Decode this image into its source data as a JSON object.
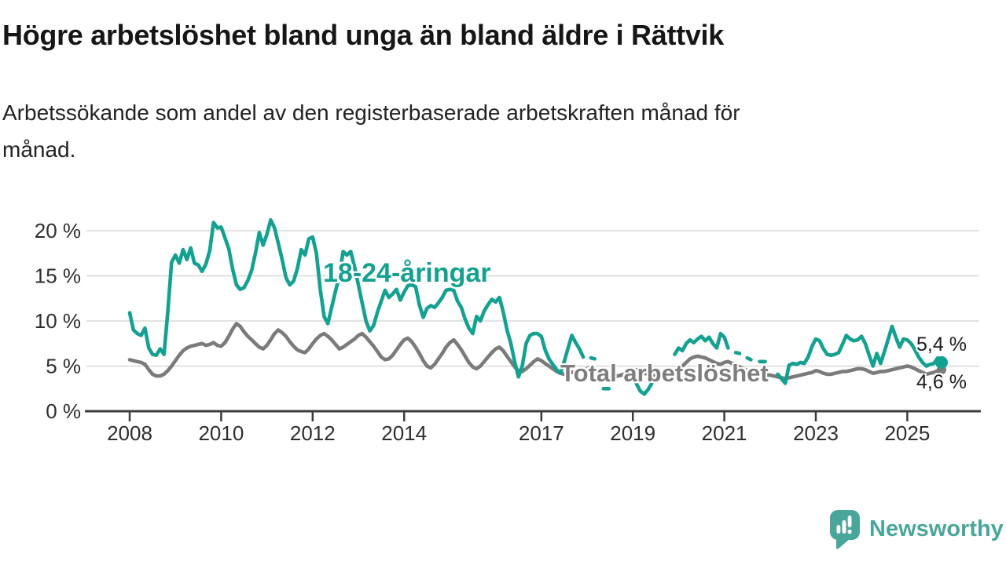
{
  "header": {
    "title": "Högre arbetslöshet bland unga än bland äldre i Rättvik",
    "subtitle_lines": {
      "line1": "Arbetssökande som andel av den registerbaserade arbetskraften månad för",
      "line2": "månad."
    }
  },
  "chart_data": {
    "type": "line",
    "title": "Högre arbetslöshet bland unga än bland äldre i Rättvik",
    "xlabel": "",
    "ylabel": "Arbetssökande som andel av den registerbaserade arbetskraften (%)",
    "unit": "%",
    "grid": "horizontal",
    "ylim": [
      0,
      21.5
    ],
    "x_domain_years": [
      2008,
      2026
    ],
    "start_month": "2008-01",
    "frequency": "monthly",
    "x_ticks": [
      {
        "year": 2008,
        "label": "2008"
      },
      {
        "year": 2010,
        "label": "2010"
      },
      {
        "year": 2012,
        "label": "2012"
      },
      {
        "year": 2014,
        "label": "2014"
      },
      {
        "year": 2017,
        "label": "2017"
      },
      {
        "year": 2019,
        "label": "2019"
      },
      {
        "year": 2021,
        "label": "2021"
      },
      {
        "year": 2023,
        "label": "2023"
      },
      {
        "year": 2025,
        "label": "2025"
      }
    ],
    "y_ticks": [
      {
        "value": 0,
        "label": "0 %"
      },
      {
        "value": 5,
        "label": "5 %"
      },
      {
        "value": 10,
        "label": "10 %"
      },
      {
        "value": 15,
        "label": "15 %"
      },
      {
        "value": 20,
        "label": "20 %"
      }
    ],
    "series": [
      {
        "id": "young",
        "name": "18-24-åringar",
        "color": "#14a191",
        "end_label": "5,4 %",
        "end_value": 5.4,
        "values": [
          10.9,
          9.0,
          8.6,
          8.4,
          9.2,
          7.0,
          6.3,
          6.2,
          6.9,
          6.3,
          11.0,
          16.5,
          17.3,
          16.4,
          17.9,
          16.8,
          18.1,
          16.4,
          16.2,
          15.5,
          16.3,
          17.8,
          20.9,
          20.3,
          20.4,
          19.2,
          18.0,
          15.8,
          14.0,
          13.5,
          13.7,
          14.5,
          15.6,
          17.5,
          19.8,
          18.4,
          19.6,
          21.2,
          20.3,
          18.6,
          16.8,
          14.8,
          14.0,
          14.4,
          15.8,
          17.9,
          17.3,
          19.1,
          19.3,
          17.5,
          13.5,
          10.5,
          9.7,
          11.5,
          13.3,
          15.0,
          17.7,
          17.3,
          17.7,
          16.0,
          14.0,
          12.0,
          10.0,
          8.9,
          9.5,
          11.0,
          12.2,
          13.4,
          12.6,
          13.0,
          13.5,
          12.3,
          13.2,
          13.9,
          14.0,
          13.8,
          11.8,
          10.4,
          11.4,
          11.7,
          11.5,
          12.0,
          12.6,
          13.4,
          13.5,
          13.4,
          12.2,
          11.5,
          10.2,
          9.2,
          8.6,
          10.5,
          10.0,
          11.1,
          11.8,
          12.4,
          12.1,
          12.6,
          11.0,
          9.0,
          7.5,
          5.5,
          3.8,
          5.0,
          7.5,
          8.4,
          8.6,
          8.6,
          8.3,
          6.8,
          5.8,
          5.2,
          4.6,
          4.2,
          5.5,
          7.0,
          8.4,
          7.6,
          6.9,
          6.0,
          null,
          5.9,
          5.8,
          null,
          null,
          2.5,
          null,
          null,
          null,
          null,
          null,
          null,
          4.0,
          3.0,
          2.2,
          1.9,
          2.4,
          3.1,
          null,
          null,
          null,
          null,
          null,
          6.3,
          7.0,
          6.7,
          7.5,
          7.9,
          7.6,
          8.0,
          8.3,
          7.8,
          8.2,
          7.5,
          7.0,
          8.6,
          8.2,
          7.0,
          null,
          6.5,
          6.4,
          null,
          5.9,
          5.7,
          null,
          null,
          5.5,
          null,
          null,
          null,
          4.1,
          3.6,
          3.1,
          5.1,
          5.3,
          5.2,
          5.4,
          5.3,
          6.0,
          7.2,
          8.0,
          7.8,
          6.9,
          6.3,
          6.2,
          6.3,
          6.5,
          7.4,
          8.4,
          8.0,
          7.8,
          7.9,
          8.3,
          7.5,
          6.2,
          5.0,
          6.4,
          5.3,
          6.6,
          8.0,
          9.4,
          8.2,
          7.1,
          8.0,
          7.9,
          7.5,
          6.8,
          6.0,
          5.4,
          5.0,
          5.2,
          5.3,
          5.9,
          5.4
        ]
      },
      {
        "id": "total",
        "name": "Total arbetslöshet",
        "color": "#7b7b7b",
        "end_label": "4,6 %",
        "end_value": 4.6,
        "values": [
          5.7,
          5.6,
          5.5,
          5.4,
          5.2,
          4.6,
          4.1,
          3.9,
          3.9,
          4.1,
          4.5,
          5.0,
          5.6,
          6.2,
          6.7,
          7.0,
          7.2,
          7.3,
          7.4,
          7.5,
          7.3,
          7.4,
          7.6,
          7.3,
          7.2,
          7.6,
          8.3,
          9.1,
          9.7,
          9.4,
          8.8,
          8.3,
          7.9,
          7.5,
          7.1,
          6.9,
          7.3,
          7.9,
          8.6,
          9.0,
          8.7,
          8.3,
          7.7,
          7.2,
          6.8,
          6.6,
          6.5,
          6.9,
          7.5,
          8.0,
          8.4,
          8.6,
          8.3,
          7.9,
          7.4,
          6.9,
          7.1,
          7.4,
          7.7,
          8.0,
          8.4,
          8.6,
          8.2,
          7.7,
          7.2,
          6.6,
          6.0,
          5.7,
          5.8,
          6.2,
          6.8,
          7.4,
          7.9,
          8.1,
          7.7,
          7.1,
          6.4,
          5.6,
          5.0,
          4.8,
          5.2,
          5.8,
          6.4,
          7.1,
          7.6,
          7.9,
          7.4,
          6.8,
          6.1,
          5.4,
          4.9,
          4.7,
          5.0,
          5.5,
          6.0,
          6.5,
          6.9,
          7.1,
          6.7,
          6.1,
          5.5,
          4.9,
          4.5,
          4.4,
          4.7,
          5.1,
          5.5,
          5.8,
          5.6,
          5.3,
          5.0,
          4.7,
          4.4,
          4.2,
          4.1,
          4.2,
          4.3,
          4.4,
          4.5,
          4.6,
          4.7,
          4.8,
          4.6,
          4.4,
          4.2,
          4.0,
          3.9,
          3.8,
          3.9,
          4.0,
          4.2,
          4.4,
          4.5,
          4.6,
          4.4,
          4.2,
          4.1,
          4.0,
          3.9,
          3.9,
          4.0,
          4.2,
          4.4,
          4.6,
          4.8,
          5.0,
          5.4,
          5.8,
          6.0,
          6.1,
          6.0,
          5.9,
          5.7,
          5.5,
          5.3,
          5.2,
          5.4,
          5.5,
          5.3,
          5.1,
          4.9,
          4.7,
          4.5,
          4.3,
          4.2,
          4.1,
          4.0,
          4.0,
          4.0,
          3.9,
          3.8,
          3.7,
          3.6,
          3.7,
          3.8,
          3.9,
          4.0,
          4.1,
          4.2,
          4.3,
          4.5,
          4.4,
          4.2,
          4.1,
          4.1,
          4.2,
          4.3,
          4.4,
          4.4,
          4.5,
          4.6,
          4.7,
          4.7,
          4.6,
          4.4,
          4.2,
          4.3,
          4.4,
          4.4,
          4.5,
          4.6,
          4.7,
          4.8,
          4.9,
          5.0,
          4.9,
          4.7,
          4.5,
          4.3,
          4.1,
          4.2,
          4.3,
          4.5,
          4.6
        ]
      }
    ]
  },
  "footer": {
    "brand": "Newsworthy",
    "brand_color": "#4aa69b"
  }
}
